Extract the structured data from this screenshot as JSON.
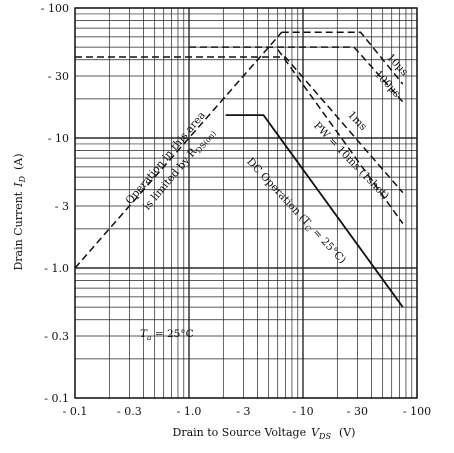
{
  "chart_data": {
    "type": "line",
    "title": "",
    "xlabel": "Drain to Source Voltage  V_DS  (V)",
    "ylabel": "Drain Current  I_D  (A)",
    "xscale": "log",
    "yscale": "log",
    "xlim": [
      -0.1,
      -100
    ],
    "ylim": [
      -0.1,
      -100
    ],
    "grid": true,
    "x_ticks": [
      {
        "value": -0.1,
        "label": "- 0.1"
      },
      {
        "value": -0.3,
        "label": "- 0.3"
      },
      {
        "value": -1.0,
        "label": "- 1.0"
      },
      {
        "value": -3,
        "label": "- 3"
      },
      {
        "value": -10,
        "label": "- 10"
      },
      {
        "value": -30,
        "label": "- 30"
      },
      {
        "value": -100,
        "label": "- 100"
      }
    ],
    "y_ticks": [
      {
        "value": -100,
        "label": "- 100"
      },
      {
        "value": -30,
        "label": "- 30"
      },
      {
        "value": -10,
        "label": "- 10"
      },
      {
        "value": -3,
        "label": "- 3"
      },
      {
        "value": -1.0,
        "label": "- 1.0"
      },
      {
        "value": -0.3,
        "label": "- 0.3"
      },
      {
        "value": -0.1,
        "label": "- 0.1"
      }
    ],
    "series": [
      {
        "name": "Operation in this area is limited by R_DS(on)",
        "style": "dashed",
        "x": [
          -0.1,
          -6.5
        ],
        "y": [
          -1.0,
          -65
        ]
      },
      {
        "name": "10μs",
        "style": "dashed",
        "x": [
          -6.5,
          -32,
          -75
        ],
        "y": [
          -65,
          -65,
          -26
        ]
      },
      {
        "name": "100μs",
        "style": "dashed",
        "x": [
          -1.0,
          -28,
          -75
        ],
        "y": [
          -50,
          -50,
          -19
        ]
      },
      {
        "name": "1ms",
        "style": "dashed",
        "x": [
          -0.1,
          -7,
          -75
        ],
        "y": [
          -42,
          -42,
          -3.8
        ]
      },
      {
        "name": "PW = 10ms (1shot)",
        "style": "dashed",
        "x": [
          -6,
          -75
        ],
        "y": [
          -48,
          -2.2
        ]
      },
      {
        "name": "DC Operation (T_C = 25°C)",
        "style": "solid",
        "x": [
          -2.1,
          -4.5,
          -75
        ],
        "y": [
          -15,
          -15,
          -0.5
        ]
      }
    ],
    "annotations": [
      {
        "text": "Operation in this area",
        "target": "R_DS(on) limit"
      },
      {
        "text": "is limited by R_DS(on)",
        "target": "R_DS(on) limit"
      },
      {
        "text": "10μs",
        "target": "10μs"
      },
      {
        "text": "100μs",
        "target": "100μs"
      },
      {
        "text": "1ms",
        "target": "1ms"
      },
      {
        "text": "PW = 10ms (1shot)",
        "target": "PW = 10ms"
      },
      {
        "text": "DC Operation (T_C = 25°C)",
        "target": "DC"
      },
      {
        "text": "T_a = 25°C",
        "target": "condition"
      }
    ]
  },
  "labels": {
    "xlabel_main": "Drain to Source Voltage",
    "xlabel_symbol": "V",
    "xlabel_sub": "DS",
    "xlabel_unit": "(V)",
    "ylabel_main": "Drain Current",
    "ylabel_symbol": "I",
    "ylabel_sub": "D",
    "ylabel_unit": "(A)",
    "rds_line1": "Operation in this area",
    "rds_line2": "is limited by R",
    "rds_sub": "DS(on)",
    "ten_us": "10μs",
    "hundred_us": "100μs",
    "one_ms": "1ms",
    "pw": "PW = 10ms (1shot)",
    "dc": "DC Operation (T",
    "dc_sub": "C",
    "dc_end": " = 25°C)",
    "ta_symbol": "T",
    "ta_sub": "a",
    "ta_value": " = 25°C"
  },
  "colors": {
    "line": "#111111",
    "grid": "#222222",
    "background": "#ffffff"
  }
}
